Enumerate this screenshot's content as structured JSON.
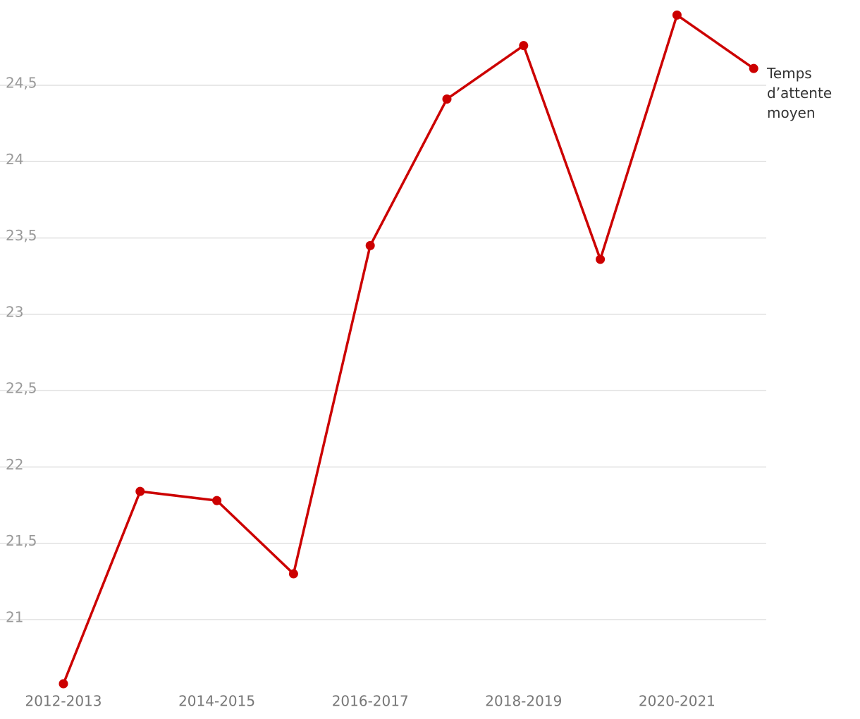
{
  "chart_data": {
    "type": "line",
    "categories": [
      "2012-2013",
      null,
      "2014-2015",
      null,
      "2016-2017",
      null,
      "2018-2019",
      null,
      "2020-2021",
      null
    ],
    "series": [
      {
        "name": "Temps d’attente moyen",
        "color": "#cc0000",
        "values": [
          20.58,
          21.84,
          21.78,
          21.3,
          23.45,
          24.41,
          24.76,
          23.36,
          24.96,
          24.61
        ]
      }
    ],
    "ylim": [
      20.55,
      25
    ],
    "yticks": [
      21,
      {
        "value": 21.5,
        "label": "21,5"
      },
      22,
      {
        "value": 22.5,
        "label": "22,5"
      },
      23,
      {
        "value": 23.5,
        "label": "23,5"
      },
      24,
      {
        "value": 24.5,
        "label": "24,5"
      }
    ],
    "grid": true
  }
}
